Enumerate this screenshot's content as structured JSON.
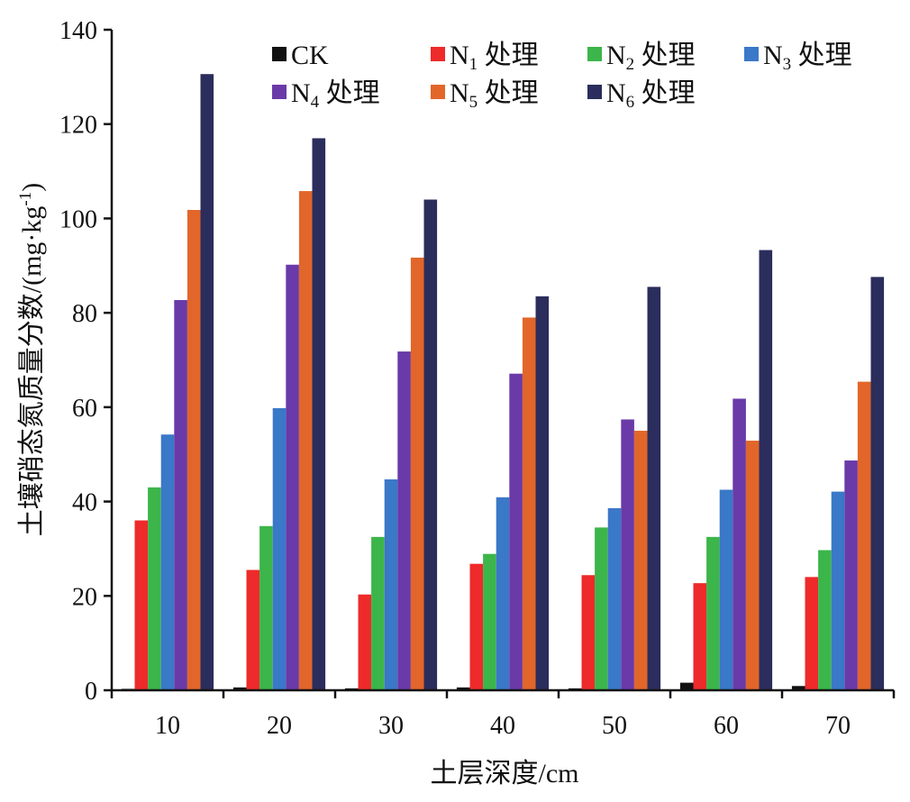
{
  "chart_data": {
    "type": "bar",
    "xlabel": "土层深度/cm",
    "ylabel": "土壤硝态氮质量分数/(mg·kg",
    "ylabel_superscript": "-1",
    "ylabel_close": ")",
    "ylim": [
      0,
      140
    ],
    "y_ticks": [
      "0",
      "20",
      "40",
      "60",
      "80",
      "100",
      "120",
      "140"
    ],
    "categories": [
      "10",
      "20",
      "30",
      "40",
      "50",
      "60",
      "70"
    ],
    "grid": false,
    "legend_position": "top",
    "series": [
      {
        "name": "CK",
        "label_main": "CK",
        "label_sub": "",
        "label_tail": "",
        "color": "#111111",
        "values": [
          0.3,
          0.6,
          0.4,
          0.6,
          0.4,
          1.6,
          0.9
        ]
      },
      {
        "name": "N1 处理",
        "label_main": "N",
        "label_sub": "1",
        "label_tail": " 处理",
        "color": "#ee2a2a",
        "values": [
          36,
          25.5,
          20.3,
          26.8,
          24.4,
          22.7,
          24
        ]
      },
      {
        "name": "N2 处理",
        "label_main": "N",
        "label_sub": "2",
        "label_tail": " 处理",
        "color": "#3cb54a",
        "values": [
          43,
          34.8,
          32.5,
          28.9,
          34.5,
          32.5,
          29.7
        ]
      },
      {
        "name": "N3 处理",
        "label_main": "N",
        "label_sub": "3",
        "label_tail": " 处理",
        "color": "#3a78c8",
        "values": [
          54.2,
          59.8,
          44.7,
          40.9,
          38.6,
          42.5,
          42.1
        ]
      },
      {
        "name": "N4 处理",
        "label_main": "N",
        "label_sub": "4",
        "label_tail": " 处理",
        "color": "#6a3aa8",
        "values": [
          82.7,
          90.2,
          71.8,
          67.1,
          57.4,
          61.8,
          48.7
        ]
      },
      {
        "name": "N5 处理",
        "label_main": "N",
        "label_sub": "5",
        "label_tail": " 处理",
        "color": "#e2662a",
        "values": [
          101.8,
          105.8,
          91.7,
          79,
          55,
          52.9,
          65.4
        ]
      },
      {
        "name": "N6 处理",
        "label_main": "N",
        "label_sub": "6",
        "label_tail": " 处理",
        "color": "#2b2d5c",
        "values": [
          130.6,
          117,
          104,
          83.5,
          85.5,
          93.3,
          87.6
        ]
      }
    ]
  }
}
